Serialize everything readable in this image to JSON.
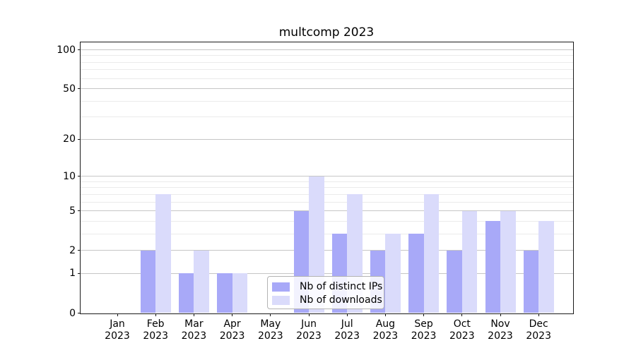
{
  "title": "multcomp 2023",
  "colors": {
    "distinct_ips_bar": "#a8a9f8",
    "downloads_bar": "#dadbfb",
    "major_gridline": "#c6c6c6",
    "minor_gridline": "#ebebeb",
    "spine": "#1a1a1a",
    "legend_border": "#b3b3b3"
  },
  "legend": {
    "items": [
      {
        "label": "Nb of distinct IPs"
      },
      {
        "label": "Nb of downloads"
      }
    ]
  },
  "chart_data": {
    "type": "bar",
    "title": "multcomp 2023",
    "categories": [
      "Jan 2023",
      "Feb 2023",
      "Mar 2023",
      "Apr 2023",
      "May 2023",
      "Jun 2023",
      "Jul 2023",
      "Aug 2023",
      "Sep 2023",
      "Oct 2023",
      "Nov 2023",
      "Dec 2023"
    ],
    "series": [
      {
        "name": "Nb of distinct IPs",
        "color": "#a8a9f8",
        "values": [
          0,
          2,
          1,
          1,
          0,
          5,
          3,
          2,
          3,
          2,
          4,
          2
        ]
      },
      {
        "name": "Nb of downloads",
        "color": "#dadbfb",
        "values": [
          0,
          7,
          2,
          1,
          0,
          10,
          7,
          3,
          7,
          5,
          5,
          4
        ]
      }
    ],
    "xlabel": "",
    "ylabel": "",
    "y_scale": "log1p",
    "ylim": [
      0,
      100
    ],
    "y_major_ticks": [
      0,
      1,
      2,
      5,
      10,
      20,
      50,
      100
    ],
    "y_minor_gridlines": [
      3,
      4,
      6,
      7,
      8,
      9,
      30,
      40,
      60,
      70,
      80,
      90
    ],
    "grid": true,
    "legend_position": "lower center"
  }
}
